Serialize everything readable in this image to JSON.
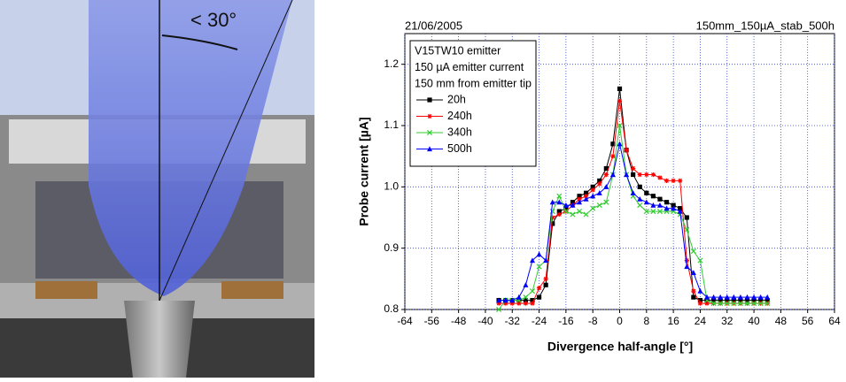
{
  "illustration": {
    "angle_label": "< 30°"
  },
  "chart_data": {
    "type": "line",
    "title_left": "21/06/2005",
    "title_right": "150mm_150µA_stab_500h",
    "xlabel": "Divergence half-angle [°]",
    "ylabel": "Probe current [µA]",
    "legend_title": [
      "V15TW10 emitter",
      "150 µA emitter current",
      "150 mm from emitter tip"
    ],
    "legend_position": "upper left",
    "grid": true,
    "xlim": [
      -64,
      64
    ],
    "xticks": [
      -64,
      -56,
      -48,
      -40,
      -32,
      -24,
      -16,
      -8,
      0,
      8,
      16,
      24,
      32,
      40,
      48,
      56,
      64
    ],
    "ylim": [
      0.8,
      1.25
    ],
    "yticks": [
      0.8,
      0.9,
      {
        "value": 1,
        "label": "1.0"
      },
      1.1,
      1.2
    ],
    "x": [
      -36,
      -34,
      -32,
      -30,
      -28,
      -26,
      -24,
      -22,
      -20,
      -18,
      -16,
      -14,
      -12,
      -10,
      -8,
      -6,
      -4,
      -2,
      0,
      2,
      4,
      6,
      8,
      10,
      12,
      14,
      16,
      18,
      20,
      22,
      24,
      26,
      28,
      30,
      32,
      34,
      36,
      38,
      40,
      42,
      44
    ],
    "series": [
      {
        "name": "20h",
        "color": "#000000",
        "marker": "square",
        "values": [
          0.815,
          0.815,
          0.815,
          0.815,
          0.815,
          0.815,
          0.82,
          0.84,
          0.94,
          0.96,
          0.965,
          0.975,
          0.985,
          0.99,
          1.0,
          1.01,
          1.03,
          1.07,
          1.16,
          1.06,
          1.02,
          1.0,
          0.99,
          0.985,
          0.98,
          0.975,
          0.97,
          0.965,
          0.95,
          0.82,
          0.815,
          0.815,
          0.815,
          0.815,
          0.815,
          0.815,
          0.815,
          0.815,
          0.815,
          0.815,
          0.815
        ]
      },
      {
        "name": "240h",
        "color": "#ff0000",
        "marker": "star",
        "values": [
          0.81,
          0.81,
          0.81,
          0.81,
          0.81,
          0.81,
          0.835,
          0.85,
          0.95,
          0.955,
          0.96,
          0.97,
          0.98,
          0.985,
          0.995,
          1.005,
          1.02,
          1.05,
          1.14,
          1.06,
          1.03,
          1.02,
          1.02,
          1.02,
          1.015,
          1.01,
          1.01,
          1.01,
          0.88,
          0.83,
          0.81,
          0.81,
          0.81,
          0.81,
          0.81,
          0.81,
          0.81,
          0.81,
          0.81,
          0.81,
          0.81
        ]
      },
      {
        "name": "340h",
        "color": "#33cc33",
        "marker": "x",
        "values": [
          0.8,
          0.815,
          0.815,
          0.815,
          0.82,
          0.83,
          0.87,
          0.88,
          0.96,
          0.985,
          0.96,
          0.955,
          0.96,
          0.955,
          0.965,
          0.97,
          0.975,
          1.02,
          1.1,
          1.02,
          0.985,
          0.97,
          0.96,
          0.96,
          0.96,
          0.96,
          0.96,
          0.955,
          0.93,
          0.895,
          0.88,
          0.815,
          0.81,
          0.81,
          0.81,
          0.81,
          0.81,
          0.81,
          0.81,
          0.81,
          0.81
        ]
      },
      {
        "name": "500h",
        "color": "#0000ff",
        "marker": "triangle",
        "values": [
          0.815,
          0.815,
          0.815,
          0.82,
          0.84,
          0.88,
          0.89,
          0.88,
          0.975,
          0.975,
          0.97,
          0.97,
          0.975,
          0.98,
          0.985,
          0.99,
          1.0,
          1.02,
          1.07,
          1.02,
          0.99,
          0.98,
          0.975,
          0.97,
          0.97,
          0.965,
          0.965,
          0.96,
          0.87,
          0.86,
          0.83,
          0.82,
          0.82,
          0.82,
          0.82,
          0.82,
          0.82,
          0.82,
          0.82,
          0.82,
          0.82
        ]
      }
    ]
  }
}
